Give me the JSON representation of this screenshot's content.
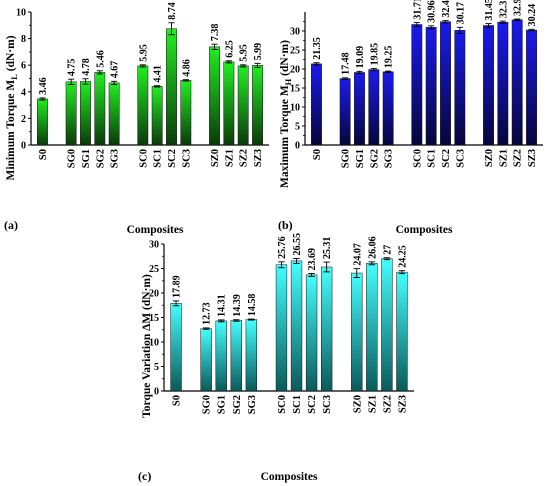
{
  "chart_data": [
    {
      "type": "bar",
      "panel_label": "(a)",
      "xlabel": "Composites",
      "ylabel": "Minimum Torque M",
      "ylabel_sub": "L",
      "ylabel_unit": " (dN·m)",
      "categories": [
        "S0",
        "SG0",
        "SG1",
        "SG2",
        "SG3",
        "SC0",
        "SC1",
        "SC2",
        "SC3",
        "SZ0",
        "SZ1",
        "SZ2",
        "SZ3"
      ],
      "values": [
        3.46,
        4.75,
        4.78,
        5.46,
        4.67,
        5.95,
        4.41,
        8.74,
        4.86,
        7.38,
        6.25,
        5.95,
        5.99
      ],
      "value_labels": [
        "3.46",
        "4.75",
        "4.78",
        "5.46",
        "4.67",
        "5.95",
        "4.41",
        "8.74",
        "4.86",
        "7.38",
        "6.25",
        "5.95",
        "5.99"
      ],
      "errors": [
        0.08,
        0.2,
        0.2,
        0.12,
        0.12,
        0.08,
        0.05,
        0.45,
        0.05,
        0.2,
        0.08,
        0.08,
        0.15
      ],
      "ylim": [
        0,
        10
      ],
      "yticks": [
        0,
        2,
        4,
        6,
        8,
        10
      ],
      "colors": {
        "top": "#22ee22",
        "bottom": "#0a3a0a"
      }
    },
    {
      "type": "bar",
      "panel_label": "(b)",
      "xlabel": "Composites",
      "ylabel": "Maximum Torque M",
      "ylabel_sub": "H",
      "ylabel_unit": " (dN·m)",
      "categories": [
        "S0",
        "SG0",
        "SG1",
        "SG2",
        "SG3",
        "SC0",
        "SC1",
        "SC2",
        "SC3",
        "SZ0",
        "SZ1",
        "SZ2",
        "SZ3"
      ],
      "values": [
        21.35,
        17.48,
        19.09,
        19.85,
        19.25,
        31.71,
        30.96,
        32.43,
        30.17,
        31.45,
        32.31,
        32.95,
        30.24
      ],
      "value_labels": [
        "21.35",
        "17.48",
        "19.09",
        "19.85",
        "19.25",
        "31.71",
        "30.96",
        "32.43",
        "30.17",
        "31.45",
        "32.31",
        "32.95",
        "30.24"
      ],
      "errors": [
        0.3,
        0.2,
        0.3,
        0.3,
        0.2,
        0.5,
        0.4,
        0.3,
        0.8,
        0.5,
        0.3,
        0.2,
        0.2
      ],
      "ylim": [
        0,
        35
      ],
      "yticks": [
        0,
        5,
        10,
        15,
        20,
        25,
        30
      ],
      "colors": {
        "top": "#1a1aee",
        "bottom": "#06063a"
      }
    },
    {
      "type": "bar",
      "panel_label": "(c)",
      "xlabel": "Composites",
      "ylabel": "Torque Variation ΔM (dN·m)",
      "categories": [
        "S0",
        "SG0",
        "SG1",
        "SG2",
        "SG3",
        "SC0",
        "SC1",
        "SC2",
        "SC3",
        "SZ0",
        "SZ1",
        "SZ2",
        "SZ3"
      ],
      "values": [
        17.89,
        12.73,
        14.31,
        14.39,
        14.58,
        25.76,
        26.55,
        23.69,
        25.31,
        24.07,
        26.06,
        27,
        24.25
      ],
      "value_labels": [
        "17.89",
        "12.73",
        "14.31",
        "14.39",
        "14.58",
        "25.76",
        "26.55",
        "23.69",
        "25.31",
        "24.07",
        "26.06",
        "27",
        "24.25"
      ],
      "errors": [
        0.5,
        0.15,
        0.2,
        0.15,
        0.1,
        0.6,
        0.5,
        0.3,
        1.0,
        0.9,
        0.3,
        0.2,
        0.3
      ],
      "ylim": [
        0,
        30
      ],
      "yticks": [
        0,
        5,
        10,
        15,
        20,
        25,
        30
      ],
      "colors": {
        "top": "#44ffff",
        "bottom": "#0a5a5a"
      }
    }
  ]
}
